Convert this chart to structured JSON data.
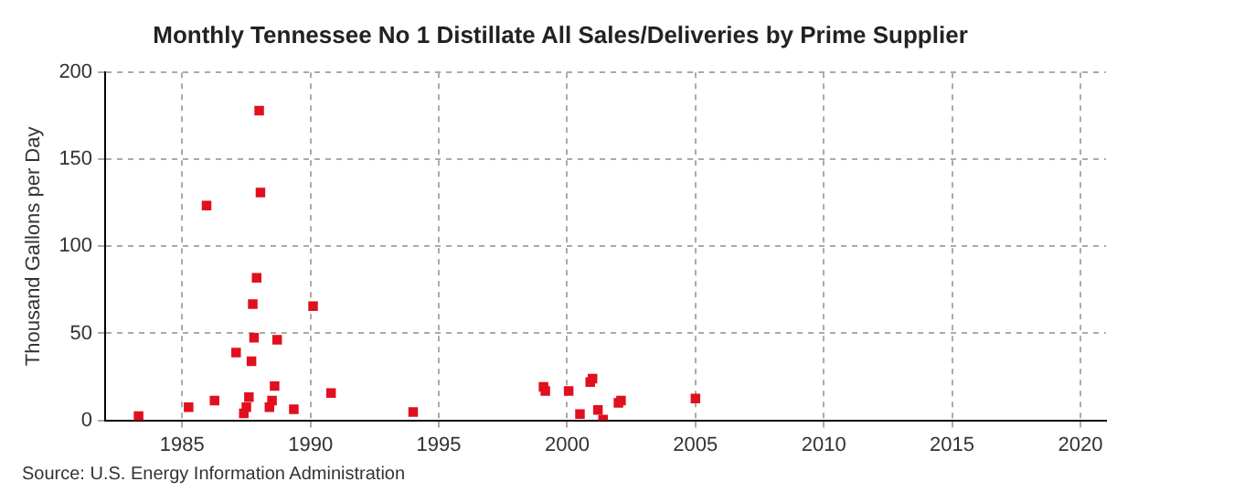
{
  "chart_data": {
    "type": "scatter",
    "title": "Monthly Tennessee No 1 Distillate All Sales/Deliveries by Prime Supplier",
    "ylabel": "Thousand Gallons per Day",
    "annotations": [
      "Source: U.S. Energy Information Administration"
    ],
    "x": [
      1983.3,
      1985.25,
      1985.95,
      1986.26,
      1987.1,
      1987.4,
      1987.5,
      1987.6,
      1987.7,
      1987.75,
      1987.8,
      1987.9,
      1988.0,
      1988.05,
      1988.4,
      1988.5,
      1988.6,
      1988.7,
      1989.35,
      1990.1,
      1990.8,
      1994.0,
      1999.08,
      1999.15,
      2000.06,
      2000.5,
      2000.9,
      2000.99,
      2001.2,
      2001.4,
      2002.0,
      2002.1,
      2005.0
    ],
    "series": [
      {
        "color": "#e0101e",
        "values": [
          2.4,
          7.6,
          123.5,
          11.3,
          39,
          4,
          7.6,
          13.3,
          34,
          66.8,
          47.5,
          82,
          178,
          131,
          7.6,
          11.3,
          19.7,
          46.3,
          6.4,
          65.6,
          15.7,
          4.8,
          19.3,
          16.9,
          16.9,
          3.6,
          22,
          24,
          6,
          0.4,
          10,
          11.3,
          12.5
        ]
      }
    ],
    "xlim": [
      1982,
      2021
    ],
    "xticks": [
      1985,
      1990,
      1995,
      2000,
      2005,
      2010,
      2015,
      2020
    ],
    "ylim": [
      0,
      200
    ],
    "yticks": [
      0,
      50,
      100,
      150,
      200
    ],
    "grid": true,
    "marker": "square",
    "legend": false
  }
}
